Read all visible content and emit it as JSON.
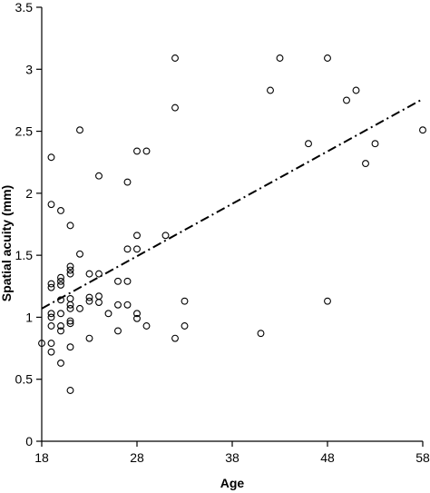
{
  "chart_data": {
    "type": "scatter",
    "title": "",
    "xlabel": "Age",
    "ylabel": "Spatial acuity (mm)",
    "xlim": [
      18,
      58
    ],
    "ylim": [
      0,
      3.5
    ],
    "xticks": [
      18,
      28,
      38,
      48,
      58
    ],
    "yticks": [
      0,
      0.5,
      1,
      1.5,
      2,
      2.5,
      3,
      3.5
    ],
    "grid": false,
    "legend": "none",
    "colors": {
      "axis": "#000000",
      "marker": "#000000",
      "background": "#ffffff"
    },
    "series": [
      {
        "values": [
          [
            18,
            0.79
          ],
          [
            19,
            2.29
          ],
          [
            19,
            1.91
          ],
          [
            19,
            1.27
          ],
          [
            19,
            1.24
          ],
          [
            19,
            1.03
          ],
          [
            19,
            1.0
          ],
          [
            19,
            0.93
          ],
          [
            19,
            0.79
          ],
          [
            19,
            0.72
          ],
          [
            20,
            1.86
          ],
          [
            20,
            1.32
          ],
          [
            20,
            1.29
          ],
          [
            20,
            1.26
          ],
          [
            20,
            1.14
          ],
          [
            20,
            1.03
          ],
          [
            20,
            0.93
          ],
          [
            20,
            0.89
          ],
          [
            20,
            0.63
          ],
          [
            21,
            1.74
          ],
          [
            21,
            1.41
          ],
          [
            21,
            1.38
          ],
          [
            21,
            1.35
          ],
          [
            21,
            1.15
          ],
          [
            21,
            1.1
          ],
          [
            21,
            1.07
          ],
          [
            21,
            0.97
          ],
          [
            21,
            0.95
          ],
          [
            21,
            0.76
          ],
          [
            21,
            0.41
          ],
          [
            22,
            2.51
          ],
          [
            22,
            1.51
          ],
          [
            22,
            1.07
          ],
          [
            23,
            1.35
          ],
          [
            23,
            1.16
          ],
          [
            23,
            1.13
          ],
          [
            23,
            0.83
          ],
          [
            24,
            2.14
          ],
          [
            24,
            1.35
          ],
          [
            24,
            1.17
          ],
          [
            24,
            1.12
          ],
          [
            25,
            1.03
          ],
          [
            26,
            1.29
          ],
          [
            26,
            1.1
          ],
          [
            26,
            0.89
          ],
          [
            27,
            2.09
          ],
          [
            27,
            1.55
          ],
          [
            27,
            1.29
          ],
          [
            27,
            1.1
          ],
          [
            28,
            2.34
          ],
          [
            28,
            1.66
          ],
          [
            28,
            1.55
          ],
          [
            28,
            1.03
          ],
          [
            28,
            0.99
          ],
          [
            29,
            2.34
          ],
          [
            29,
            0.93
          ],
          [
            31,
            1.66
          ],
          [
            32,
            3.09
          ],
          [
            32,
            2.69
          ],
          [
            32,
            0.83
          ],
          [
            33,
            1.13
          ],
          [
            33,
            0.93
          ],
          [
            41,
            0.87
          ],
          [
            42,
            2.83
          ],
          [
            43,
            3.09
          ],
          [
            46,
            2.4
          ],
          [
            48,
            3.09
          ],
          [
            48,
            1.13
          ],
          [
            50,
            2.75
          ],
          [
            51,
            2.83
          ],
          [
            52,
            2.24
          ],
          [
            53,
            2.4
          ],
          [
            58,
            2.51
          ]
        ]
      }
    ],
    "trendline": {
      "style": "dash-dot",
      "x": [
        18,
        58
      ],
      "y": [
        1.07,
        2.76
      ]
    }
  }
}
